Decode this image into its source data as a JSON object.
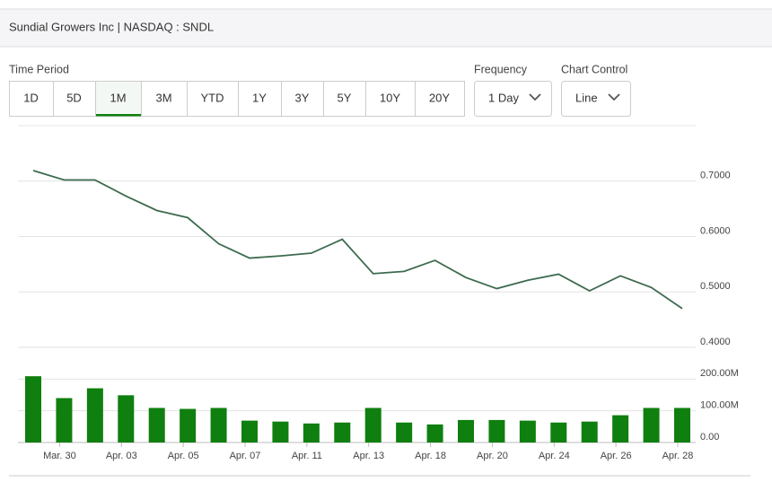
{
  "header": {
    "title": "Sundial Growers Inc | NASDAQ : SNDL"
  },
  "time_period": {
    "label": "Time Period",
    "options": [
      "1D",
      "5D",
      "1M",
      "3M",
      "YTD",
      "1Y",
      "3Y",
      "5Y",
      "10Y",
      "20Y"
    ],
    "selected_index": 2
  },
  "frequency": {
    "label": "Frequency",
    "value": "1 Day"
  },
  "chart_control": {
    "label": "Chart Control",
    "value": "Line"
  },
  "chart_data": [
    {
      "type": "line",
      "color": "#3d6b4f",
      "values": [
        0.719,
        0.702,
        0.702,
        0.673,
        0.647,
        0.634,
        0.587,
        0.561,
        0.565,
        0.57,
        0.595,
        0.533,
        0.537,
        0.557,
        0.526,
        0.506,
        0.521,
        0.532,
        0.502,
        0.529,
        0.508,
        0.47
      ],
      "ylim": [
        0.4,
        0.8
      ],
      "yticks": [
        {
          "value": 0.4,
          "label": "0.4000"
        },
        {
          "value": 0.5,
          "label": "0.5000"
        },
        {
          "value": 0.6,
          "label": "0.6000"
        },
        {
          "value": 0.7,
          "label": "0.7000"
        }
      ],
      "grid": true
    },
    {
      "type": "bar",
      "color": "#0f7f0f",
      "categories": [
        null,
        "Mar. 30",
        null,
        "Apr. 03",
        null,
        "Apr. 05",
        null,
        "Apr. 07",
        null,
        "Apr. 11",
        null,
        "Apr. 13",
        null,
        "Apr. 18",
        null,
        "Apr. 20",
        null,
        "Apr. 24",
        null,
        "Apr. 26",
        null,
        "Apr. 28"
      ],
      "values": [
        209000000,
        140000000,
        171000000,
        149000000,
        109000000,
        106000000,
        109000000,
        69000000,
        66000000,
        60000000,
        63000000,
        109000000,
        63000000,
        57000000,
        71000000,
        71000000,
        69000000,
        63000000,
        66000000,
        86000000,
        109000000,
        109000000
      ],
      "ylim": [
        0,
        300000000
      ],
      "yticks": [
        {
          "value": 0,
          "label": "0.00"
        },
        {
          "value": 100000000,
          "label": "100.00M"
        },
        {
          "value": 200000000,
          "label": "200.00M"
        }
      ],
      "grid": true
    }
  ]
}
